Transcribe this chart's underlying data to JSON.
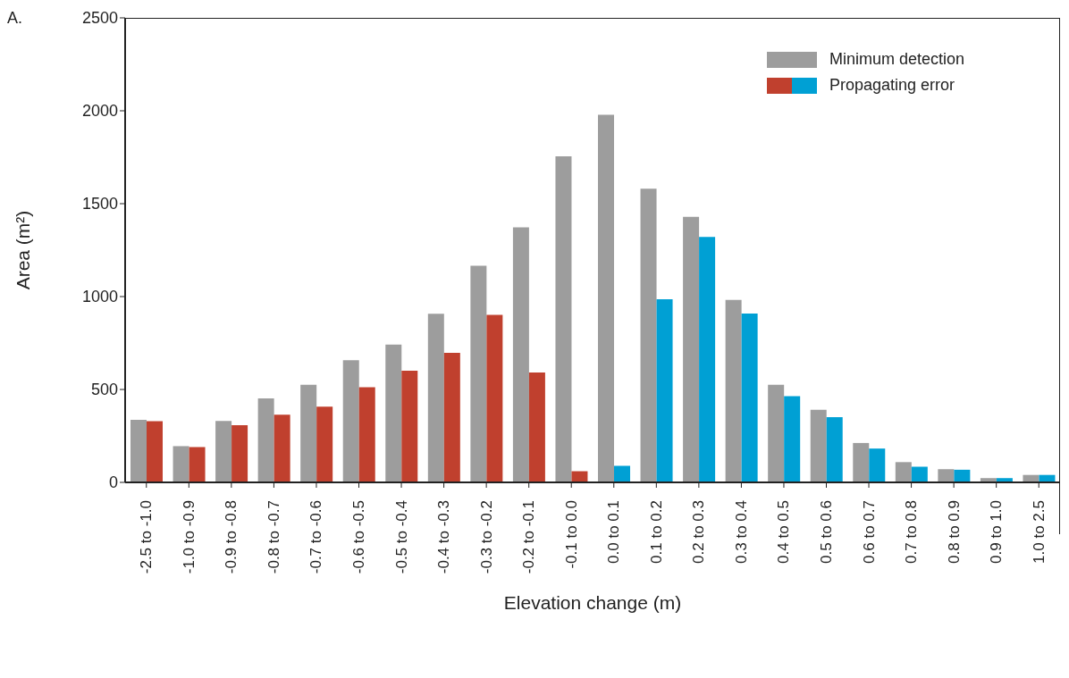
{
  "chart_data": {
    "type": "bar",
    "xlabel": "Elevation change (m)",
    "ylabel": "Area (m²)",
    "annotations": [
      "A."
    ],
    "categories": [
      "-2.5 to -1.0",
      "-1.0 to -0.9",
      "-0.9 to -0.8",
      "-0.8 to -0.7",
      "-0.7 to -0.6",
      "-0.6 to -0.5",
      "-0.5 to -0.4",
      "-0.4 to -0.3",
      "-0.3 to -0.2",
      "-0.2 to -0.1",
      "-0.1 to 0.0",
      "0.0 to 0.1",
      "0.1 to 0.2",
      "0.2 to 0.3",
      "0.3 to 0.4",
      "0.4 to 0.5",
      "0.5 to 0.6",
      "0.6 to 0.7",
      "0.7 to 0.8",
      "0.8 to 0.9",
      "0.9 to 1.0",
      "1.0 to 2.5"
    ],
    "series": [
      {
        "name": "Minimum detection",
        "color": "#9d9d9d",
        "values": [
          336,
          195,
          331,
          452,
          525,
          657,
          742,
          907,
          1166,
          1373,
          1755,
          1978,
          1581,
          1429,
          982,
          525,
          391,
          212,
          109,
          71,
          23,
          40
        ]
      },
      {
        "name": "Propagating error",
        "color": "#c0402e",
        "colors": [
          "#c0402e",
          "#c0402e",
          "#c0402e",
          "#c0402e",
          "#c0402e",
          "#c0402e",
          "#c0402e",
          "#c0402e",
          "#c0402e",
          "#c0402e",
          "#c0402e",
          "#00a0d4",
          "#00a0d4",
          "#00a0d4",
          "#00a0d4",
          "#00a0d4",
          "#00a0d4",
          "#00a0d4",
          "#00a0d4",
          "#00a0d4",
          "#00a0d4",
          "#00a0d4"
        ],
        "values": [
          329,
          190,
          308,
          364,
          407,
          512,
          601,
          697,
          901,
          591,
          60,
          89,
          985,
          1321,
          909,
          464,
          351,
          182,
          84,
          68,
          23,
          40
        ]
      }
    ],
    "ylim": [
      0,
      2500
    ],
    "yticks": [
      0,
      500,
      1000,
      1500,
      2000,
      2500
    ],
    "grid": false,
    "legend": "top right"
  }
}
